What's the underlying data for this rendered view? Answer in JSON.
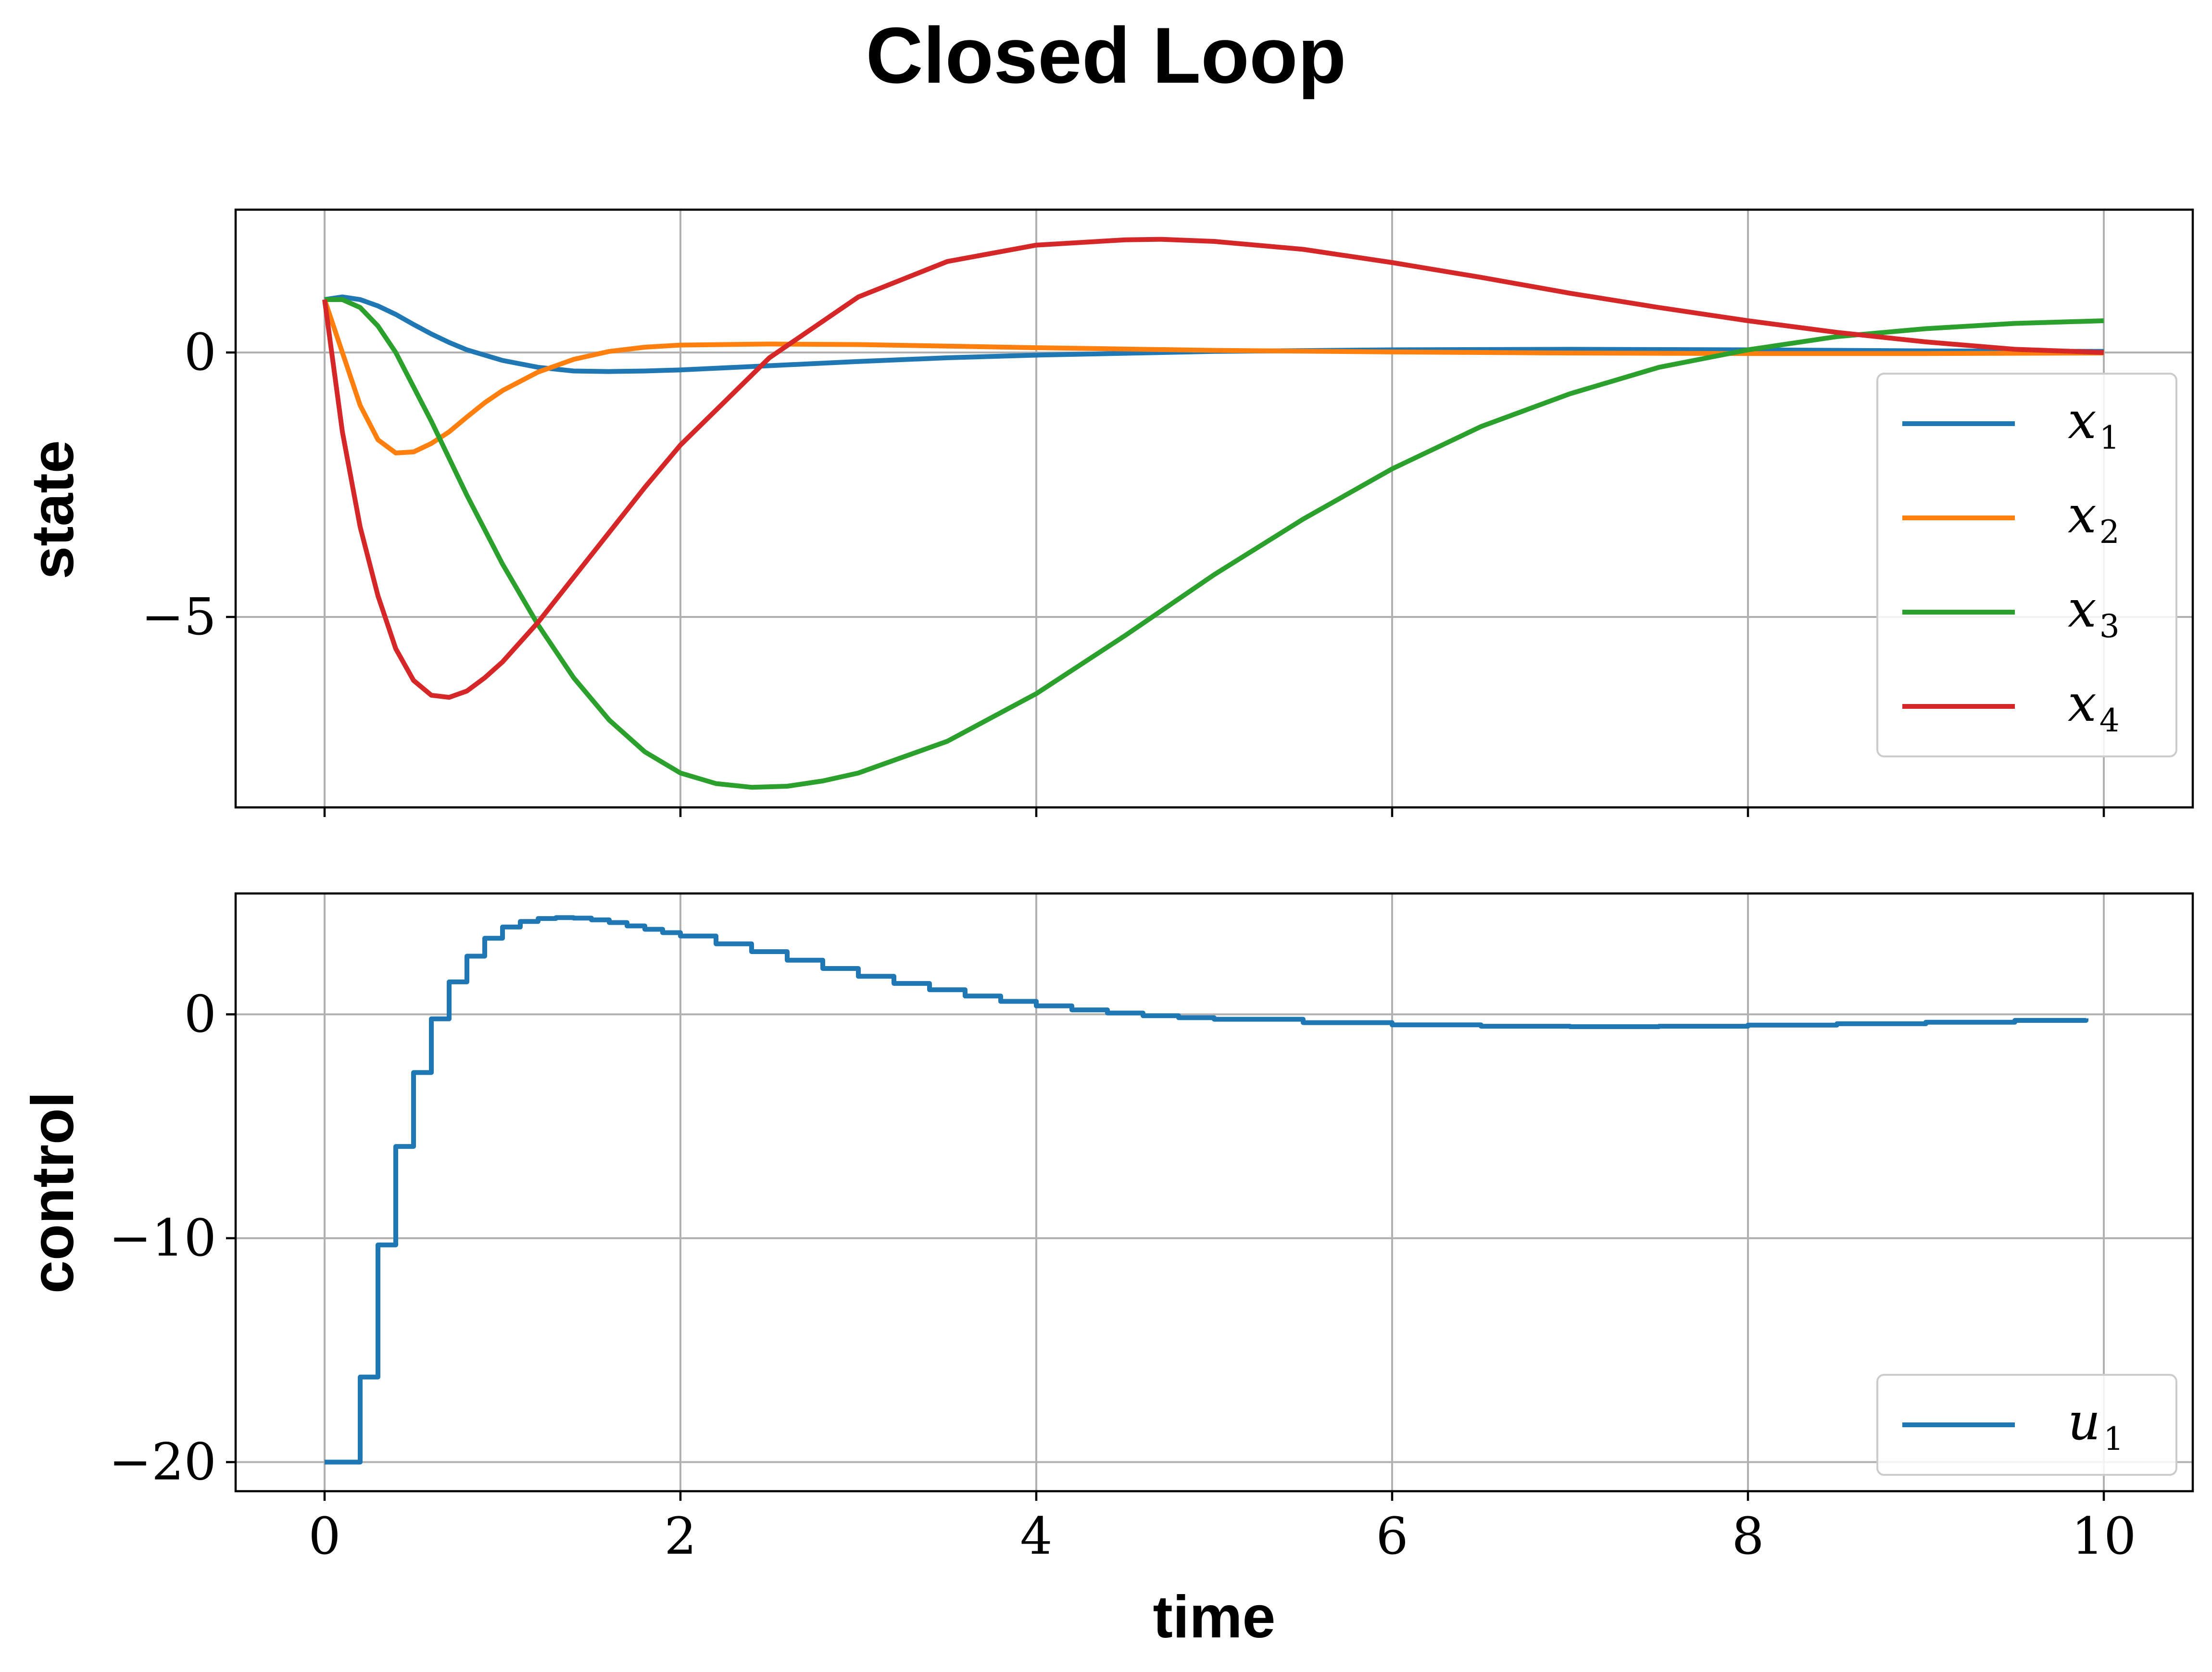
{
  "figure": {
    "title": "Closed Loop"
  },
  "chart_data": [
    {
      "type": "line",
      "panel": "state",
      "title": "",
      "xlabel": "",
      "ylabel": "state",
      "xlim": [
        -0.5,
        10.5
      ],
      "ylim": [
        -8.6,
        2.7
      ],
      "xticks": [
        0,
        2,
        4,
        6,
        8,
        10
      ],
      "yticks": [
        0,
        -5
      ],
      "ytick_labels": [
        "0",
        "−5"
      ],
      "grid": true,
      "legend": "right",
      "series": [
        {
          "name": "x",
          "sub": "1",
          "color": "#1f77b4",
          "x": [
            0,
            0.1,
            0.2,
            0.3,
            0.4,
            0.5,
            0.6,
            0.7,
            0.8,
            0.9,
            1.0,
            1.2,
            1.4,
            1.6,
            1.8,
            2.0,
            2.5,
            3.0,
            3.5,
            4.0,
            5.0,
            6.0,
            7.0,
            8.0,
            9.0,
            10.0
          ],
          "y": [
            1.0,
            1.05,
            1.0,
            0.88,
            0.72,
            0.53,
            0.35,
            0.19,
            0.05,
            -0.05,
            -0.15,
            -0.28,
            -0.35,
            -0.36,
            -0.35,
            -0.33,
            -0.25,
            -0.17,
            -0.1,
            -0.05,
            0.02,
            0.05,
            0.06,
            0.05,
            0.03,
            0.02
          ]
        },
        {
          "name": "x",
          "sub": "2",
          "color": "#ff7f0e",
          "x": [
            0,
            0.1,
            0.2,
            0.3,
            0.4,
            0.5,
            0.6,
            0.7,
            0.8,
            0.9,
            1.0,
            1.2,
            1.4,
            1.6,
            1.8,
            2.0,
            2.5,
            3.0,
            3.5,
            4.0,
            5.0,
            6.0,
            7.0,
            8.0,
            9.0,
            10.0
          ],
          "y": [
            1.0,
            0.0,
            -1.0,
            -1.65,
            -1.9,
            -1.88,
            -1.72,
            -1.5,
            -1.22,
            -0.95,
            -0.72,
            -0.37,
            -0.13,
            0.02,
            0.1,
            0.14,
            0.16,
            0.15,
            0.12,
            0.09,
            0.04,
            0.01,
            -0.01,
            -0.02,
            -0.02,
            -0.01
          ]
        },
        {
          "name": "x",
          "sub": "3",
          "color": "#2ca02c",
          "x": [
            0,
            0.1,
            0.2,
            0.3,
            0.4,
            0.6,
            0.8,
            1.0,
            1.2,
            1.4,
            1.6,
            1.8,
            2.0,
            2.2,
            2.4,
            2.6,
            2.8,
            3.0,
            3.5,
            4.0,
            4.5,
            5.0,
            5.5,
            6.0,
            6.5,
            7.0,
            7.5,
            8.0,
            8.5,
            9.0,
            9.5,
            10.0
          ],
          "y": [
            1.0,
            1.0,
            0.85,
            0.5,
            0.0,
            -1.3,
            -2.7,
            -4.0,
            -5.15,
            -6.15,
            -6.95,
            -7.55,
            -7.95,
            -8.15,
            -8.22,
            -8.2,
            -8.1,
            -7.95,
            -7.35,
            -6.45,
            -5.35,
            -4.2,
            -3.15,
            -2.2,
            -1.4,
            -0.78,
            -0.28,
            0.05,
            0.3,
            0.45,
            0.55,
            0.6
          ]
        },
        {
          "name": "x",
          "sub": "4",
          "color": "#d62728",
          "x": [
            0,
            0.1,
            0.2,
            0.3,
            0.4,
            0.5,
            0.6,
            0.7,
            0.8,
            0.9,
            1.0,
            1.2,
            1.4,
            1.6,
            1.8,
            2.0,
            2.5,
            3.0,
            3.5,
            4.0,
            4.5,
            4.7,
            5.0,
            5.5,
            6.0,
            6.5,
            7.0,
            7.5,
            8.0,
            8.5,
            9.0,
            9.5,
            10.0
          ],
          "y": [
            1.0,
            -1.5,
            -3.3,
            -4.6,
            -5.6,
            -6.2,
            -6.48,
            -6.52,
            -6.4,
            -6.15,
            -5.85,
            -5.1,
            -4.25,
            -3.4,
            -2.55,
            -1.75,
            -0.1,
            1.05,
            1.72,
            2.03,
            2.13,
            2.14,
            2.1,
            1.95,
            1.7,
            1.42,
            1.12,
            0.85,
            0.6,
            0.38,
            0.2,
            0.06,
            0.0
          ]
        }
      ]
    },
    {
      "type": "line",
      "panel": "control",
      "title": "",
      "xlabel": "time",
      "ylabel": "control",
      "xlim": [
        -0.5,
        10.5
      ],
      "ylim": [
        -21.3,
        5.4
      ],
      "xticks": [
        0,
        2,
        4,
        6,
        8,
        10
      ],
      "xtick_labels": [
        "0",
        "2",
        "4",
        "6",
        "8",
        "10"
      ],
      "yticks": [
        0,
        -10,
        -20
      ],
      "ytick_labels": [
        "0",
        "−10",
        "−20"
      ],
      "grid": true,
      "legend": "lower right",
      "series": [
        {
          "name": "u",
          "sub": "1",
          "color": "#1f77b4",
          "drawstyle": "steps-post",
          "x": [
            0,
            0.1,
            0.2,
            0.3,
            0.4,
            0.5,
            0.6,
            0.7,
            0.8,
            0.9,
            1.0,
            1.1,
            1.2,
            1.3,
            1.4,
            1.5,
            1.6,
            1.7,
            1.8,
            1.9,
            2.0,
            2.2,
            2.4,
            2.6,
            2.8,
            3.0,
            3.2,
            3.4,
            3.6,
            3.8,
            4.0,
            4.2,
            4.4,
            4.6,
            4.8,
            5.0,
            5.5,
            6.0,
            6.5,
            7.0,
            7.5,
            8.0,
            8.5,
            9.0,
            9.5,
            9.9
          ],
          "y": [
            -20.0,
            -20.0,
            -16.2,
            -10.3,
            -5.9,
            -2.6,
            -0.2,
            1.45,
            2.6,
            3.4,
            3.9,
            4.15,
            4.28,
            4.32,
            4.3,
            4.22,
            4.1,
            3.95,
            3.8,
            3.65,
            3.5,
            3.15,
            2.8,
            2.42,
            2.05,
            1.7,
            1.38,
            1.1,
            0.82,
            0.58,
            0.38,
            0.2,
            0.06,
            -0.06,
            -0.15,
            -0.22,
            -0.37,
            -0.47,
            -0.53,
            -0.55,
            -0.53,
            -0.48,
            -0.42,
            -0.35,
            -0.27,
            -0.18
          ]
        }
      ]
    }
  ]
}
